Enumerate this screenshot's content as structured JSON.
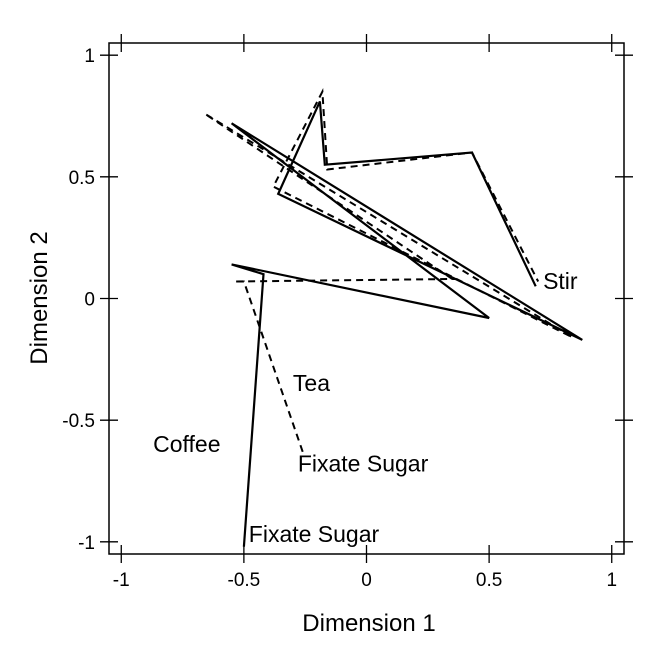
{
  "chart_data": {
    "type": "line",
    "title": "",
    "xlabel": "Dimension 1",
    "ylabel": "Dimension 2",
    "xlim": [
      -1.05,
      1.05
    ],
    "ylim": [
      -1.05,
      1.05
    ],
    "xticks": [
      -1,
      -0.5,
      0,
      0.5,
      1
    ],
    "yticks": [
      -1,
      -0.5,
      0,
      0.5,
      1
    ],
    "xtick_labels": [
      "-1",
      "-0.5",
      "0",
      "0.5",
      "1"
    ],
    "ytick_labels": [
      "-1",
      "-0.5",
      "0",
      "0.5",
      "1"
    ],
    "grid": false,
    "legend": "none",
    "series": [
      {
        "style": "solid",
        "x": [
          -0.5,
          -0.42,
          -0.55,
          0.5,
          -0.55,
          0.88,
          -0.36,
          -0.19,
          -0.17,
          0.43,
          0.69
        ],
        "y": [
          -1.02,
          0.1,
          0.14,
          -0.08,
          0.72,
          -0.17,
          0.43,
          0.81,
          0.55,
          0.6,
          0.05
        ]
      },
      {
        "style": "dashed",
        "x": [
          -0.26,
          -0.5,
          -0.54,
          0.35,
          -0.66,
          0.84,
          -0.38,
          -0.18,
          -0.16,
          0.43,
          0.7
        ],
        "y": [
          -0.63,
          0.07,
          0.07,
          0.08,
          0.76,
          -0.16,
          0.46,
          0.85,
          0.53,
          0.6,
          0.07
        ]
      }
    ],
    "annotations": [
      {
        "text": "Stir",
        "x": 0.72,
        "y": 0.04
      },
      {
        "text": "Tea",
        "x": -0.3,
        "y": -0.38
      },
      {
        "text": "Coffee",
        "x": -0.87,
        "y": -0.63
      },
      {
        "text": "Fixate Sugar",
        "x": -0.28,
        "y": -0.71
      },
      {
        "text": "Fixate Sugar",
        "x": -0.48,
        "y": -1.0
      }
    ]
  }
}
